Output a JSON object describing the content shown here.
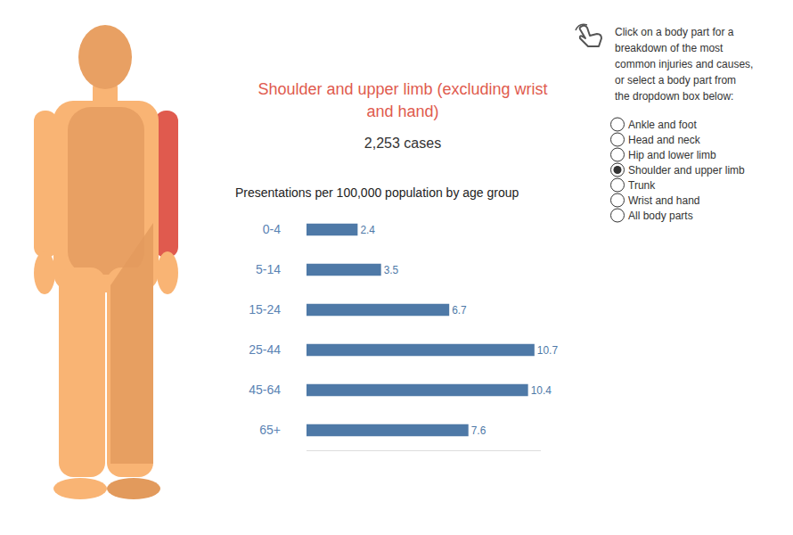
{
  "header": {
    "title": "Shoulder and upper limb (excluding wrist and hand)",
    "cases": "2,253 cases"
  },
  "instructions": [
    "Click on a body part for a",
    "breakdown of the most",
    "common injuries and causes,",
    "or select a body part from",
    "the dropdown box below:"
  ],
  "options": [
    "Ankle and foot",
    "Head and neck",
    "Hip and lower limb",
    "Shoulder and upper limb",
    "Trunk",
    "Wrist and hand",
    "All body parts"
  ],
  "selected": "Shoulder and upper limb",
  "chart_data": {
    "type": "bar",
    "title": "Presentations per 100,000 population by age group",
    "orientation": "horizontal",
    "categories": [
      "0-4",
      "5-14",
      "15-24",
      "25-44",
      "45-64",
      "65+"
    ],
    "values": [
      2.4,
      3.5,
      6.7,
      10.7,
      10.4,
      7.6
    ],
    "color": "#4e79a7",
    "xlim": [
      0,
      11
    ],
    "grid": false,
    "data_labels": true,
    "tick_labels": "y"
  }
}
